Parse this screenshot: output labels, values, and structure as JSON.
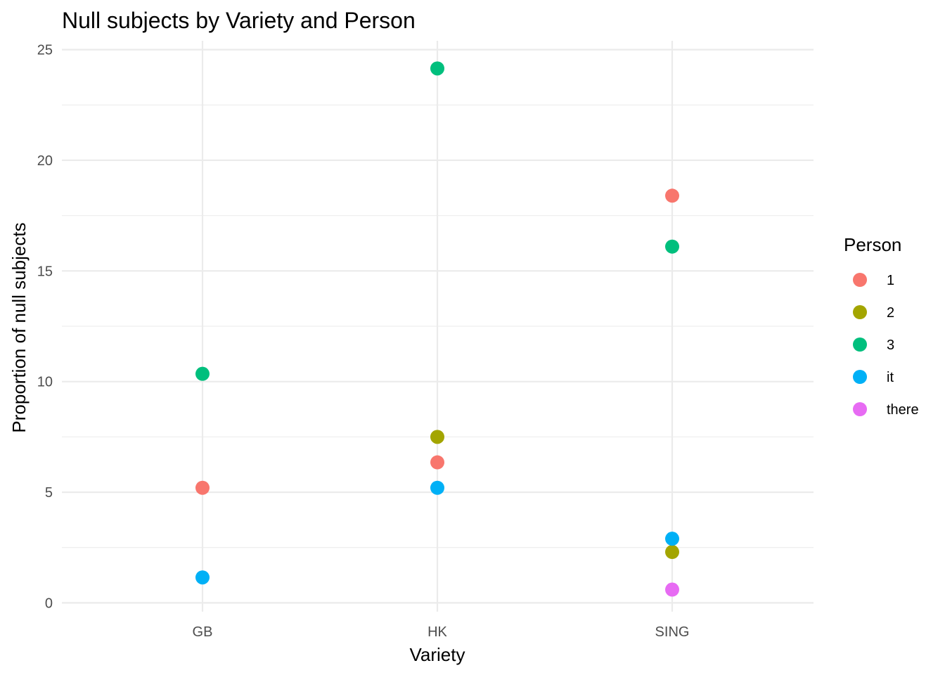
{
  "chart_data": {
    "type": "scatter",
    "title": "Null subjects by Variety and Person",
    "xlabel": "Variety",
    "ylabel": "Proportion of null subjects",
    "categories": [
      "GB",
      "HK",
      "SING"
    ],
    "ylim": [
      -0.4,
      25.4
    ],
    "y_ticks": [
      0,
      5,
      10,
      15,
      20,
      25
    ],
    "y_tick_labels": [
      "0",
      "5",
      "10",
      "15",
      "20",
      "25"
    ],
    "grid": true,
    "legend": {
      "title": "Person",
      "position": "right"
    },
    "series": [
      {
        "name": "1",
        "color": "#F8766D",
        "values": [
          5.2,
          6.35,
          18.4
        ]
      },
      {
        "name": "2",
        "color": "#A3A500",
        "values": [
          null,
          7.5,
          2.3
        ]
      },
      {
        "name": "3",
        "color": "#00BF7D",
        "values": [
          10.35,
          24.15,
          16.1
        ]
      },
      {
        "name": "it",
        "color": "#00B0F6",
        "values": [
          1.15,
          5.2,
          2.9
        ]
      },
      {
        "name": "there",
        "color": "#E76BF3",
        "values": [
          null,
          null,
          0.6
        ]
      }
    ]
  }
}
